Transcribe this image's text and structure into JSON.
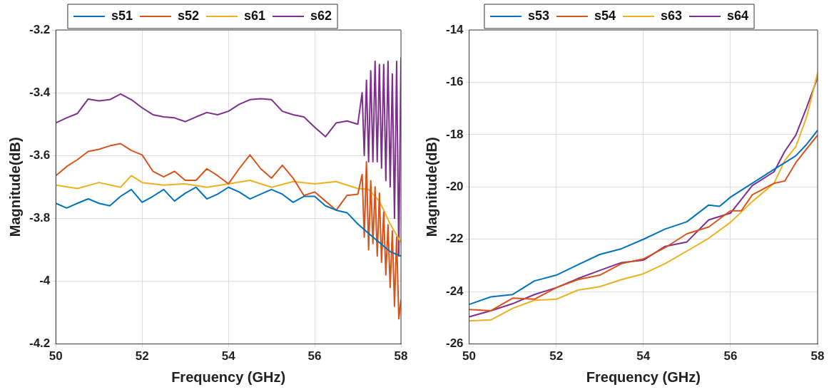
{
  "chart_data": [
    {
      "type": "line",
      "xlabel": "Frequency (GHz)",
      "ylabel": "Magnitude(dB)",
      "xlim": [
        50,
        58
      ],
      "xticks": [
        50,
        52,
        54,
        56,
        58
      ],
      "ylim": [
        -4.2,
        -3.2
      ],
      "yticks": [
        -4.2,
        -4,
        -3.8,
        -3.6,
        -3.4,
        -3.2
      ],
      "grid": true,
      "legend": "top",
      "marker": "none",
      "line_style": "solid",
      "series": [
        {
          "name": "s51",
          "color": "#0072bd",
          "x": [
            50,
            50.25,
            50.5,
            50.75,
            51,
            51.25,
            51.5,
            51.75,
            52,
            52.25,
            52.5,
            52.75,
            53,
            53.25,
            53.5,
            53.75,
            54,
            54.25,
            54.5,
            54.75,
            55,
            55.25,
            55.5,
            55.75,
            56,
            56.25,
            56.5,
            56.75,
            57,
            57.25,
            57.5,
            57.75,
            58
          ],
          "values": [
            -3.752,
            -3.767,
            -3.752,
            -3.738,
            -3.752,
            -3.76,
            -3.73,
            -3.708,
            -3.749,
            -3.73,
            -3.708,
            -3.745,
            -3.72,
            -3.701,
            -3.738,
            -3.723,
            -3.701,
            -3.716,
            -3.738,
            -3.723,
            -3.708,
            -3.723,
            -3.749,
            -3.73,
            -3.73,
            -3.76,
            -3.774,
            -3.782,
            -3.818,
            -3.848,
            -3.877,
            -3.906,
            -3.92
          ]
        },
        {
          "name": "s52",
          "color": "#d95319",
          "x": [
            50,
            50.25,
            50.5,
            50.75,
            51,
            51.25,
            51.5,
            51.75,
            52,
            52.25,
            52.5,
            52.75,
            53,
            53.25,
            53.5,
            53.75,
            54,
            54.25,
            54.5,
            54.75,
            55,
            55.25,
            55.5,
            55.75,
            56,
            56.25,
            56.5,
            56.75,
            57,
            57.1,
            57.15,
            57.2,
            57.25,
            57.3,
            57.35,
            57.4,
            57.45,
            57.5,
            57.55,
            57.6,
            57.65,
            57.7,
            57.75,
            57.8,
            57.85,
            57.9,
            57.95,
            58
          ],
          "values": [
            -3.664,
            -3.635,
            -3.613,
            -3.587,
            -3.58,
            -3.569,
            -3.562,
            -3.584,
            -3.598,
            -3.65,
            -3.668,
            -3.65,
            -3.679,
            -3.679,
            -3.642,
            -3.664,
            -3.69,
            -3.642,
            -3.598,
            -3.642,
            -3.672,
            -3.631,
            -3.672,
            -3.727,
            -3.716,
            -3.745,
            -3.774,
            -3.727,
            -3.723,
            -3.66,
            -3.86,
            -3.62,
            -3.9,
            -3.68,
            -3.88,
            -3.7,
            -3.92,
            -3.72,
            -3.94,
            -3.78,
            -3.98,
            -3.82,
            -4.02,
            -3.84,
            -4.08,
            -3.86,
            -4.12,
            -4.06
          ]
        },
        {
          "name": "s61",
          "color": "#edb120",
          "x": [
            50,
            50.5,
            51,
            51.5,
            51.75,
            52,
            52.5,
            53,
            53.5,
            54,
            54.5,
            55,
            55.5,
            56,
            56.5,
            57,
            57.25,
            57.5,
            57.75,
            58
          ],
          "values": [
            -3.694,
            -3.705,
            -3.686,
            -3.701,
            -3.664,
            -3.686,
            -3.694,
            -3.69,
            -3.701,
            -3.69,
            -3.679,
            -3.701,
            -3.683,
            -3.69,
            -3.683,
            -3.705,
            -3.708,
            -3.745,
            -3.818,
            -3.877
          ]
        },
        {
          "name": "s62",
          "color": "#7e2f8e",
          "x": [
            50,
            50.25,
            50.5,
            50.75,
            51,
            51.25,
            51.5,
            51.75,
            52,
            52.25,
            52.5,
            52.75,
            53,
            53.25,
            53.5,
            53.75,
            54,
            54.25,
            54.5,
            54.75,
            55,
            55.25,
            55.5,
            55.75,
            56,
            56.25,
            56.5,
            56.75,
            57,
            57.1,
            57.15,
            57.2,
            57.25,
            57.3,
            57.35,
            57.4,
            57.45,
            57.5,
            57.55,
            57.6,
            57.65,
            57.7,
            57.75,
            57.8,
            57.85,
            57.9,
            57.95,
            58
          ],
          "values": [
            -3.496,
            -3.48,
            -3.466,
            -3.42,
            -3.426,
            -3.422,
            -3.404,
            -3.422,
            -3.448,
            -3.47,
            -3.477,
            -3.48,
            -3.492,
            -3.477,
            -3.463,
            -3.47,
            -3.459,
            -3.437,
            -3.422,
            -3.419,
            -3.422,
            -3.459,
            -3.47,
            -3.477,
            -3.51,
            -3.54,
            -3.496,
            -3.49,
            -3.5,
            -3.4,
            -3.6,
            -3.36,
            -3.62,
            -3.33,
            -3.62,
            -3.3,
            -3.62,
            -3.31,
            -3.64,
            -3.31,
            -3.68,
            -3.3,
            -3.7,
            -3.34,
            -3.8,
            -3.3,
            -3.92,
            -3.29
          ]
        }
      ]
    },
    {
      "type": "line",
      "xlabel": "Frequency (GHz)",
      "ylabel": "Magnitude(dB)",
      "xlim": [
        50,
        58
      ],
      "xticks": [
        50,
        52,
        54,
        56,
        58
      ],
      "ylim": [
        -26,
        -14
      ],
      "yticks": [
        -26,
        -24,
        -22,
        -20,
        -18,
        -16,
        -14
      ],
      "grid": true,
      "legend": "top",
      "marker": "none",
      "line_style": "solid",
      "series": [
        {
          "name": "s53",
          "color": "#0072bd",
          "x": [
            50,
            50.5,
            51,
            51.5,
            52,
            52.5,
            53,
            53.5,
            54,
            54.5,
            55,
            55.5,
            55.75,
            56,
            56.5,
            57,
            57.25,
            57.5,
            57.75,
            58
          ],
          "values": [
            -24.49,
            -24.2,
            -24.11,
            -23.59,
            -23.37,
            -22.97,
            -22.58,
            -22.36,
            -22.0,
            -21.61,
            -21.33,
            -20.69,
            -20.74,
            -20.39,
            -19.86,
            -19.33,
            -19.07,
            -18.81,
            -18.37,
            -17.84
          ]
        },
        {
          "name": "s54",
          "color": "#d95319",
          "x": [
            50,
            50.5,
            51,
            51.5,
            52,
            52.5,
            53,
            53.5,
            54,
            54.5,
            55,
            55.5,
            56,
            56.25,
            56.5,
            57,
            57.25,
            57.5,
            57.75,
            58
          ],
          "values": [
            -24.68,
            -24.73,
            -24.25,
            -24.29,
            -23.85,
            -23.54,
            -23.37,
            -22.93,
            -22.75,
            -22.32,
            -21.79,
            -21.53,
            -20.91,
            -20.91,
            -20.3,
            -19.86,
            -19.77,
            -19.07,
            -18.54,
            -18.02
          ]
        },
        {
          "name": "s63",
          "color": "#edb120",
          "x": [
            50,
            50.5,
            51,
            51.5,
            52,
            52.5,
            53,
            53.5,
            54,
            54.5,
            55,
            55.5,
            56,
            56.5,
            57,
            57.25,
            57.5,
            57.75,
            58
          ],
          "values": [
            -25.12,
            -25.08,
            -24.64,
            -24.33,
            -24.29,
            -23.94,
            -23.81,
            -23.54,
            -23.32,
            -22.93,
            -22.45,
            -21.96,
            -21.35,
            -20.56,
            -19.86,
            -18.98,
            -18.46,
            -17.32,
            -15.65
          ]
        },
        {
          "name": "s64",
          "color": "#7e2f8e",
          "x": [
            50,
            50.5,
            51,
            51.5,
            52,
            52.5,
            53,
            53.5,
            54,
            54.5,
            55,
            55.5,
            56,
            56.5,
            57,
            57.25,
            57.5,
            57.75,
            58
          ],
          "values": [
            -24.96,
            -24.73,
            -24.46,
            -24.11,
            -23.85,
            -23.5,
            -23.19,
            -22.89,
            -22.8,
            -22.27,
            -22.1,
            -21.26,
            -21.0,
            -19.95,
            -19.42,
            -18.63,
            -18.02,
            -16.96,
            -15.82
          ]
        }
      ]
    }
  ]
}
